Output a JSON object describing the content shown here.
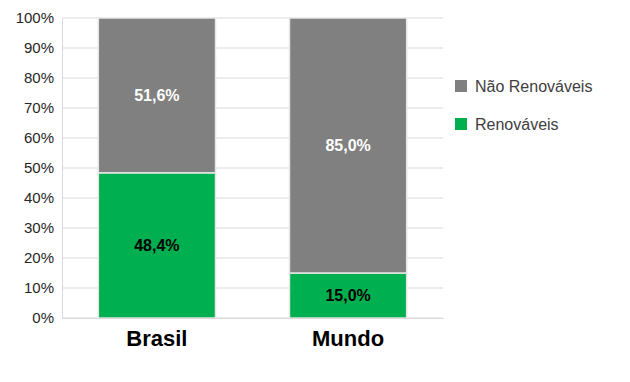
{
  "chart_data": {
    "type": "bar",
    "stacked": true,
    "data_labels": true,
    "grid": true,
    "legend": "right",
    "categories": [
      "Brasil",
      "Mundo"
    ],
    "series": [
      {
        "name": "Renováveis",
        "color": "#00b050",
        "values": [
          48.4,
          15.0
        ],
        "value_labels": [
          "48,4%",
          "15,0%"
        ]
      },
      {
        "name": "Não Renováveis",
        "color": "#808080",
        "values": [
          51.6,
          85.0
        ],
        "value_labels": [
          "51,6%",
          "85,0%"
        ]
      }
    ],
    "ylim": [
      0,
      100
    ],
    "yticks": [
      {
        "value": 0,
        "label": "0%"
      },
      {
        "value": 10,
        "label": "10%"
      },
      {
        "value": 20,
        "label": "20%"
      },
      {
        "value": 30,
        "label": "30%"
      },
      {
        "value": 40,
        "label": "40%"
      },
      {
        "value": 50,
        "label": "50%"
      },
      {
        "value": 60,
        "label": "60%"
      },
      {
        "value": 70,
        "label": "70%"
      },
      {
        "value": 80,
        "label": "80%"
      },
      {
        "value": 90,
        "label": "90%"
      },
      {
        "value": 100,
        "label": "100%"
      }
    ]
  }
}
